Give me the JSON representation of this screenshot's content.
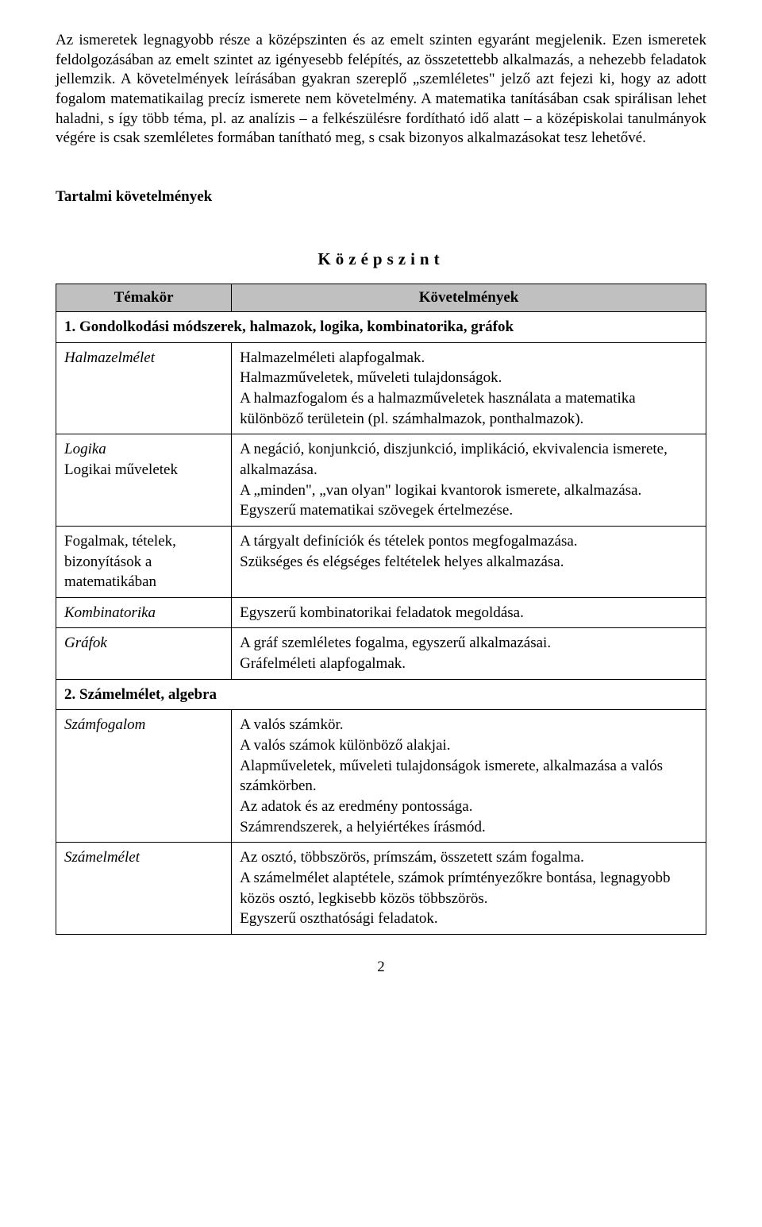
{
  "intro": "Az ismeretek legnagyobb része a középszinten és az emelt szinten egyaránt megjelenik. Ezen ismeretek feldolgozásában az emelt szintet az igényesebb felépítés, az összetettebb alkalmazás, a nehezebb feladatok jellemzik. A követelmények leírásában gyakran szereplő „szemléletes\" jelző azt fejezi ki, hogy az adott fogalom matematikailag precíz ismerete nem követelmény. A matematika tanításában csak spirálisan lehet haladni, s így több téma, pl. az analízis – a felkészülésre fordítható idő alatt – a középiskolai tanulmányok végére is csak szemléletes formában tanítható meg, s csak bizonyos alkalmazásokat tesz lehetővé.",
  "section_title": "Tartalmi követelmények",
  "level_heading": "Középszint",
  "col1": "Témakör",
  "col2": "Követelmények",
  "group1_title": "1. Gondolkodási módszerek, halmazok, logika, kombinatorika, gráfok",
  "row_halmaz_left": "Halmazelmélet",
  "row_halmaz_right": "Halmazelméleti alapfogalmak.\nHalmazműveletek, műveleti tulajdonságok.\nA halmazfogalom és a halmazműveletek használata a matematika különböző területein (pl. számhalmazok, ponthalmazok).",
  "row_logika_left_italic": "Logika",
  "row_logika_left_plain": "Logikai műveletek",
  "row_logika_right": "A negáció, konjunkció, diszjunkció, implikáció, ekvivalencia ismerete, alkalmazása.\nA „minden\", „van olyan\" logikai kvantorok ismerete, alkalmazása. Egyszerű matematikai szövegek értelmezése.",
  "row_fogalmak_left": "Fogalmak, tételek, bizonyítások a matematikában",
  "row_fogalmak_right": "A tárgyalt definíciók és tételek pontos megfogalmazása.\nSzükséges és elégséges feltételek helyes alkalmazása.",
  "row_kombi_left": "Kombinatorika",
  "row_kombi_right": "Egyszerű kombinatorikai feladatok megoldása.",
  "row_graf_left": "Gráfok",
  "row_graf_right": "A gráf szemléletes fogalma, egyszerű alkalmazásai.\nGráfelméleti alapfogalmak.",
  "group2_title": "2. Számelmélet, algebra",
  "row_szamfog_left": "Számfogalom",
  "row_szamfog_right": "A valós számkör.\nA valós számok különböző alakjai.\nAlapműveletek, műveleti tulajdonságok ismerete, alkalmazása a valós számkörben.\nAz adatok és az eredmény pontossága.\nSzámrendszerek, a helyiértékes írásmód.",
  "row_szamelm_left": "Számelmélet",
  "row_szamelm_right": "Az osztó, többszörös, prímszám, összetett szám fogalma.\nA számelmélet alaptétele, számok prímtényezőkre bontása, legnagyobb közös osztó, legkisebb közös többszörös.\nEgyszerű oszthatósági feladatok.",
  "page_number": "2"
}
